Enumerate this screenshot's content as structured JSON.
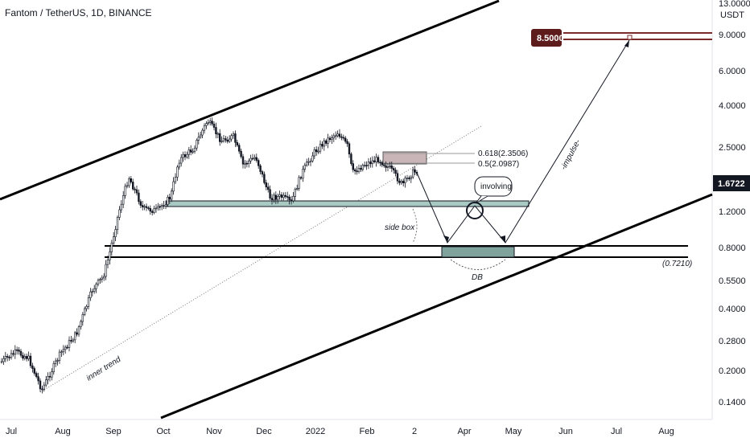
{
  "header": {
    "title": "Fantom / TetherUS, 1D, BINANCE"
  },
  "price_axis": {
    "currency": "USDT",
    "top_label": "13.0000",
    "ticks": [
      "9.0000",
      "6.0000",
      "4.0000",
      "2.5000",
      "1.2000",
      "0.8000",
      "0.5500",
      "0.4000",
      "0.2800",
      "0.2000",
      "0.1400"
    ],
    "current_price": "1.6722",
    "target_price": "8.5000",
    "current_badge_color": "#131722",
    "target_badge_color": "#5d1b1b"
  },
  "time_axis": {
    "ticks": [
      "Jul",
      "Aug",
      "Sep",
      "Oct",
      "Nov",
      "Dec",
      "2022",
      "Feb",
      "2",
      "Apr",
      "May",
      "Jun",
      "Jul",
      "Aug"
    ]
  },
  "annotations": {
    "fib_618": "0.618(2.3506)",
    "fib_5": "0.5(2.0987)",
    "involving": "involving",
    "side_box": "side box",
    "db": "DB",
    "impulse": "-impulse-",
    "inner_trend": "inner trend",
    "support_value": "(0.7210)"
  },
  "colors": {
    "candle_up": "#131722",
    "candle_down": "#131722",
    "box_fill": "#a9c9c3",
    "resistance_box": "#c9b4b8",
    "target_line": "#7b2a2a"
  }
}
